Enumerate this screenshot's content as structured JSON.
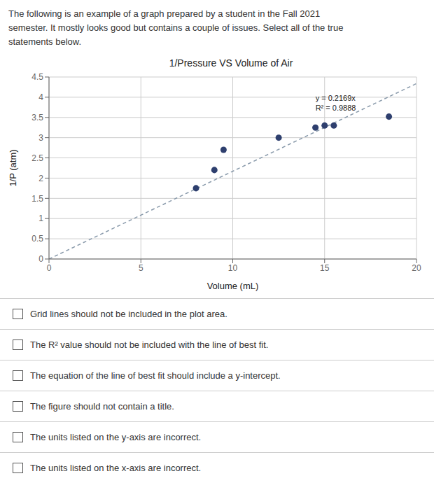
{
  "chart_data": {
    "type": "scatter",
    "title": "1/Pressure VS Volume of Air",
    "subtitle": [
      "The following is an example of a graph prepared by a student in the Fall 2021",
      "semester. It mostly looks good but contains a couple of issues. Select all of the true",
      "statements below."
    ],
    "x_label": "Volume (mL)",
    "y_label": "1/P (atm)",
    "xlim": [
      0,
      20
    ],
    "ylim": [
      0,
      4.5
    ],
    "xticks": [
      0,
      5,
      10,
      15,
      20
    ],
    "yticks": [
      0,
      0.5,
      1,
      1.5,
      2,
      2.5,
      3,
      3.5,
      4,
      4.5
    ],
    "grid": true,
    "series": [
      {
        "type": "scatter",
        "color": "#2e3f6e",
        "marker": "circle",
        "x": [
          8.0,
          9.0,
          9.5,
          12.5,
          14.5,
          15.0,
          15.5,
          18.5
        ],
        "values": [
          1.75,
          2.2,
          2.7,
          3.0,
          3.25,
          3.3,
          3.3,
          3.52
        ]
      },
      {
        "type": "line",
        "color": "#8899aa",
        "line_style": "dashed",
        "x": [
          0,
          20
        ],
        "values": [
          0,
          4.338
        ]
      }
    ],
    "annotations": [
      {
        "text": [
          "y = 0.2169x",
          "R² = 0.9888"
        ],
        "x": 14.5,
        "y": 4.1
      }
    ],
    "options": [
      "Grid lines should not be included in the plot area.",
      "The R² value should not be included with the line of best fit.",
      "The equation of the line of best fit should include a y-intercept.",
      "The figure should not contain a title.",
      "The units listed on the y-axis are incorrect.",
      "The units listed on the x-axis are incorrect."
    ]
  }
}
